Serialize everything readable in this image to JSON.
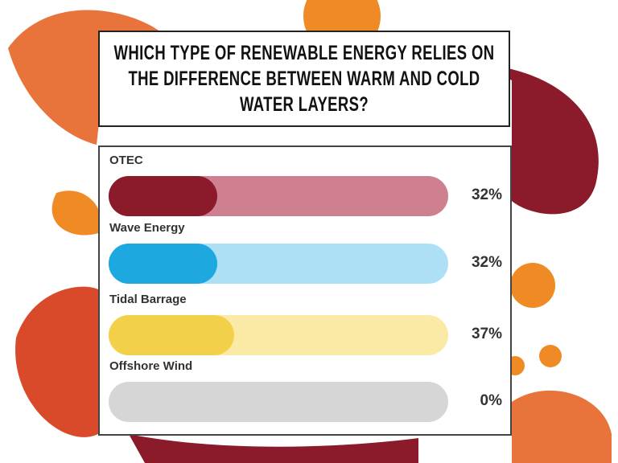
{
  "chart_data": {
    "type": "bar",
    "title": "WHICH TYPE OF RENEWABLE ENERGY RELIES ON THE DIFFERENCE BETWEEN WARM AND COLD WATER LAYERS?",
    "categories": [
      "OTEC",
      "Wave Energy",
      "Tidal Barrage",
      "Offshore Wind"
    ],
    "values": [
      32,
      32,
      37,
      0
    ],
    "value_labels": [
      "32%",
      "32%",
      "37%",
      "0%"
    ],
    "colors": [
      "#8b1a2b",
      "#1ea8e0",
      "#f2d04a",
      "#d6d6d6"
    ],
    "track_colors": [
      "#cf8090",
      "#aee0f5",
      "#fbeaa6",
      "#d6d6d6"
    ],
    "xlim": [
      0,
      100
    ]
  }
}
